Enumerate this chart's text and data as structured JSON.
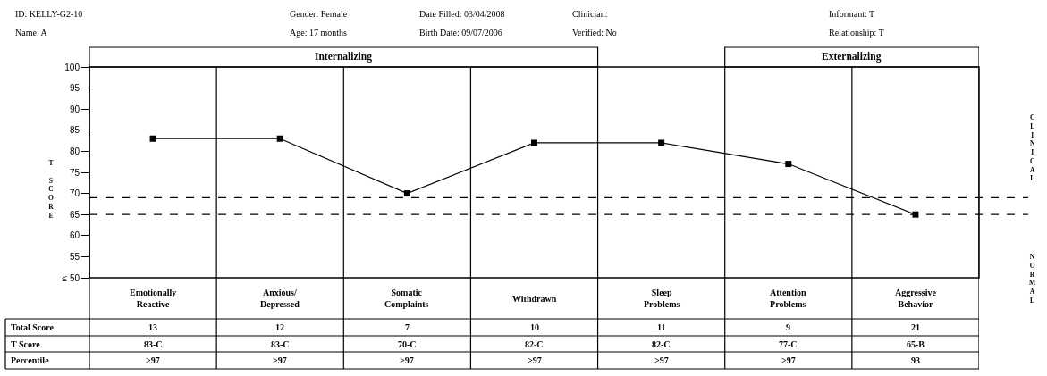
{
  "chart_data": {
    "type": "line",
    "ylabel": "T SCORE",
    "categories": [
      "Emotionally Reactive",
      "Anxious/Depressed",
      "Somatic Complaints",
      "Withdrawn",
      "Sleep Problems",
      "Attention Problems",
      "Aggressive Behavior"
    ],
    "series": [
      {
        "color": "#000000",
        "values": [
          83,
          83,
          70,
          82,
          82,
          77,
          65
        ],
        "value_labels": [
          "83-C",
          "83-C",
          "70-C",
          "82-C",
          "82-C",
          "77-C",
          "65-B"
        ]
      }
    ],
    "ylim": [
      50,
      100
    ],
    "yticks": [
      {
        "value": 50,
        "label": "≤ 50"
      },
      55,
      60,
      65,
      70,
      75,
      80,
      85,
      90,
      95,
      100
    ],
    "ref_lines": [
      {
        "axis": "y",
        "value": 69,
        "color": "#000000",
        "line_style": "dashed"
      },
      {
        "axis": "y",
        "value": 65,
        "color": "#000000",
        "line_style": "dashed"
      }
    ],
    "marker": "square",
    "line_style": "solid",
    "annotations": [
      "ID: KELLY-G2-10",
      "Name: A",
      "Gender: Female",
      "Age: 17 months",
      "Date Filled: 03/04/2008",
      "Birth Date: 09/07/2006",
      "Clinician:",
      "Verified: No",
      "Informant: T",
      "Relationship: T",
      "Internalizing",
      "Externalizing",
      "CLINICAL",
      "NORMAL",
      "Total Score",
      "T Score",
      "Percentile",
      "13",
      "12",
      "7",
      "10",
      "11",
      "9",
      "21",
      ">97",
      ">97",
      ">97",
      ">97",
      ">97",
      ">97",
      "93"
    ]
  }
}
